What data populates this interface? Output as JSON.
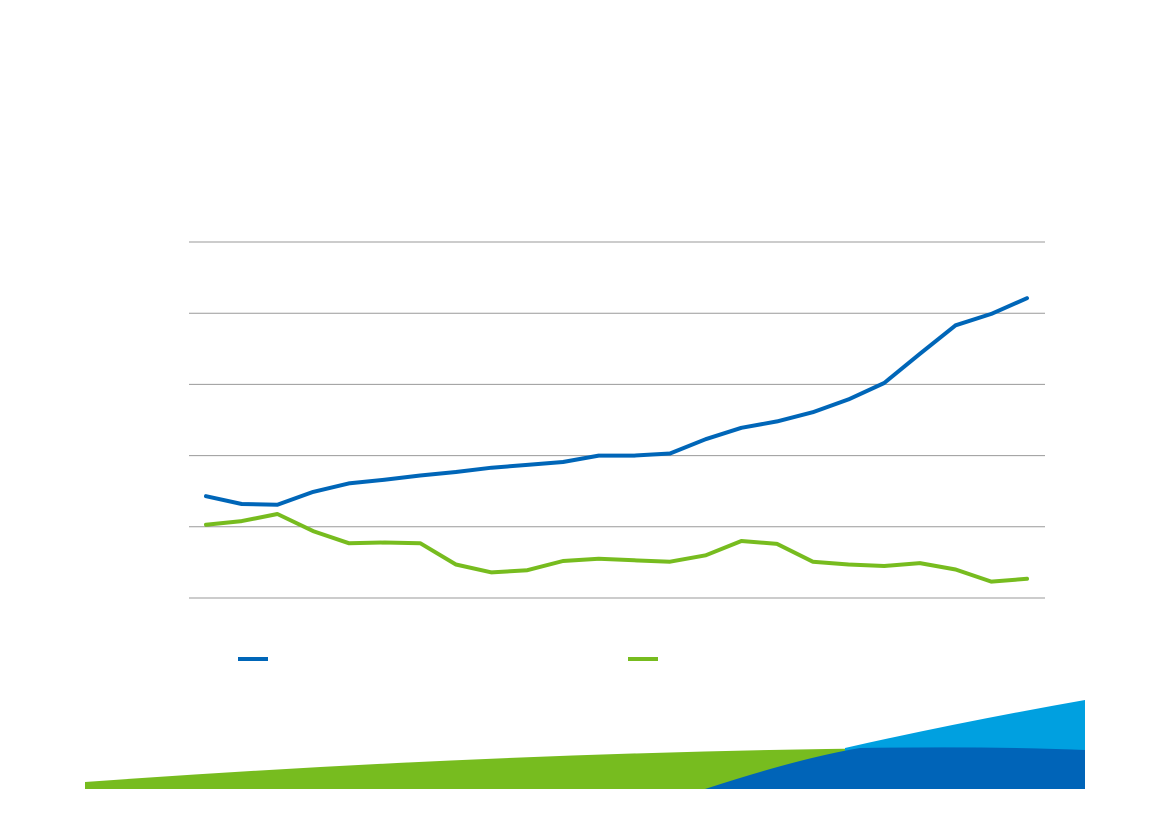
{
  "colors": {
    "series_blue": "#0066b8",
    "series_green": "#77bc1f",
    "gridline": "#9a9a9a",
    "decor_green": "#77bc1f",
    "decor_light_blue": "#00a0e0",
    "decor_dark_blue": "#0064b8",
    "background": "#ffffff"
  },
  "chart_data": {
    "type": "line",
    "title": "",
    "xlabel": "",
    "ylabel": "",
    "grid": true,
    "ylim": [
      0,
      5
    ],
    "yticks": [
      0,
      1,
      2,
      3,
      4,
      5
    ],
    "legend_position": "bottom",
    "x": [
      1,
      2,
      3,
      4,
      5,
      6,
      7,
      8,
      9,
      10,
      11,
      12,
      13,
      14,
      15,
      16,
      17,
      18,
      19,
      20,
      21,
      22,
      23,
      24
    ],
    "series": [
      {
        "name": "",
        "color": "#0066b8",
        "values": [
          1.43,
          1.32,
          1.31,
          1.49,
          1.61,
          1.66,
          1.72,
          1.77,
          1.83,
          1.87,
          1.91,
          2.0,
          2.0,
          2.03,
          2.23,
          2.39,
          2.48,
          2.61,
          2.79,
          3.02,
          3.43,
          3.83,
          3.99,
          4.21
        ]
      },
      {
        "name": "",
        "color": "#77bc1f",
        "values": [
          1.03,
          1.08,
          1.18,
          0.94,
          0.77,
          0.78,
          0.77,
          0.47,
          0.36,
          0.39,
          0.52,
          0.55,
          0.53,
          0.51,
          0.6,
          0.8,
          0.76,
          0.51,
          0.47,
          0.45,
          0.49,
          0.4,
          0.23,
          0.27
        ]
      }
    ]
  }
}
